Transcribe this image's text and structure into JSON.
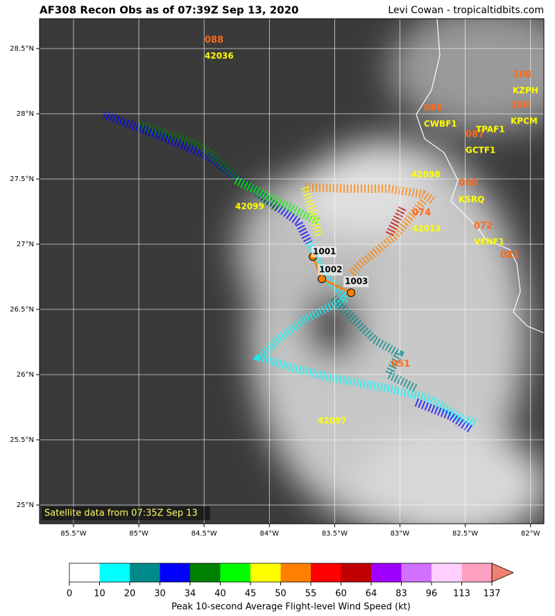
{
  "header": {
    "title": "AF308 Recon Obs as of 07:39Z Sep 13, 2020",
    "credit": "Levi Cowan - tropicaltidbits.com"
  },
  "map": {
    "xtick_labels": [
      "85.5°W",
      "85°W",
      "84.5°W",
      "84°W",
      "83.5°W",
      "83°W",
      "82.5°W",
      "82°W"
    ],
    "ytick_labels": [
      "28.5°N",
      "28°N",
      "27.5°N",
      "27°N",
      "26.5°N",
      "26°N",
      "25.5°N",
      "25°N"
    ],
    "stations": [
      {
        "wind": "088",
        "id": "42036"
      },
      {
        "wind": "108",
        "id": "KZPH"
      },
      {
        "wind": "086",
        "id": "CWBF1"
      },
      {
        "wind": "108",
        "id": "KPCM"
      },
      {
        "wind": "087",
        "id": "TPAF1"
      },
      {
        "id": "GCTF1"
      },
      {
        "id": "42098"
      },
      {
        "wind": "068",
        "id": "KSRQ"
      },
      {
        "id": "42099"
      },
      {
        "wind": "074",
        "id": "42013"
      },
      {
        "wind": "072",
        "id": "VENF1"
      },
      {
        "wind": "081"
      },
      {
        "wind": "051"
      },
      {
        "id": "42097"
      }
    ],
    "pressures": [
      "1001",
      "1002",
      "1003"
    ],
    "note": "Satellite data from 07:35Z Sep 13"
  },
  "colorbar": {
    "ticks": [
      "0",
      "10",
      "20",
      "30",
      "34",
      "40",
      "45",
      "50",
      "55",
      "60",
      "64",
      "83",
      "96",
      "113",
      "137"
    ],
    "colors": [
      "#ffffff",
      "#00ffff",
      "#008b8b",
      "#0000ff",
      "#008000",
      "#00ff00",
      "#ffff00",
      "#ff8000",
      "#ff0000",
      "#c00000",
      "#a000ff",
      "#d070ff",
      "#ffd0ff",
      "#ffa0c0",
      "#f08070"
    ],
    "label": "Peak 10-second Average Flight-level Wind Speed (kt)"
  }
}
